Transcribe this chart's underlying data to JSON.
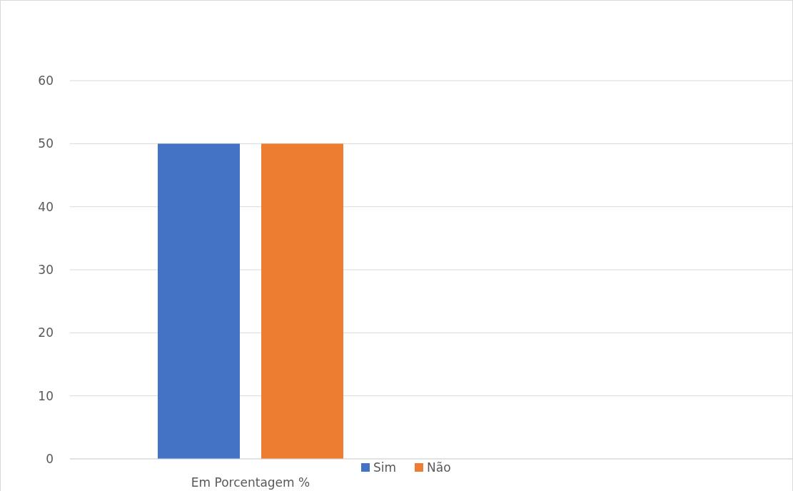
{
  "chart_data": {
    "type": "bar",
    "categories": [
      "Em Porcentagem %",
      null
    ],
    "series": [
      {
        "name": "Sim",
        "color": "#4472c4",
        "values": [
          50,
          null
        ]
      },
      {
        "name": "Não",
        "color": "#ed7d31",
        "values": [
          50,
          null
        ]
      }
    ],
    "ylim": [
      0,
      60
    ],
    "yticks": [
      0,
      10,
      20,
      30,
      40,
      50,
      60
    ],
    "grid": "y",
    "legend": "bottom"
  }
}
